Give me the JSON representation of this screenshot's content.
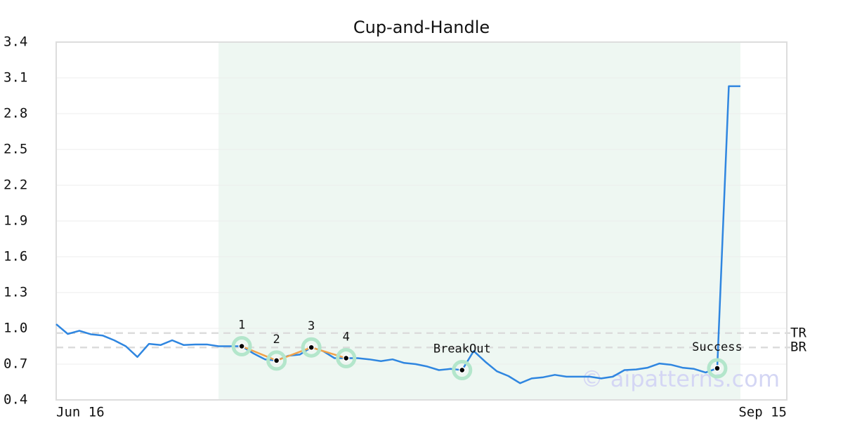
{
  "chart_data": {
    "type": "line",
    "title": "Cup-and-Handle",
    "categories": [
      "Jun 16",
      null,
      null,
      null,
      null,
      null,
      null,
      null,
      null,
      null,
      null,
      null,
      null,
      null,
      null,
      null,
      null,
      null,
      null,
      null,
      null,
      null,
      null,
      null,
      null,
      null,
      null,
      null,
      null,
      null,
      null,
      null,
      null,
      null,
      null,
      null,
      null,
      null,
      null,
      null,
      null,
      null,
      null,
      null,
      null,
      null,
      null,
      null,
      null,
      null,
      null,
      null,
      null,
      null,
      null,
      null,
      null,
      null,
      null,
      null,
      null,
      null,
      null,
      "Sep 15"
    ],
    "series": [
      {
        "color": "#2f86e0",
        "values": [
          1.035,
          0.953,
          0.98,
          0.95,
          0.94,
          0.9,
          0.85,
          0.76,
          0.87,
          0.86,
          0.9,
          0.86,
          0.865,
          0.865,
          0.85,
          0.85,
          0.85,
          0.79,
          0.74,
          0.73,
          0.77,
          0.78,
          0.84,
          0.81,
          0.75,
          0.75,
          0.75,
          0.74,
          0.725,
          0.74,
          0.71,
          0.7,
          0.68,
          0.65,
          0.66,
          0.65,
          0.81,
          0.72,
          0.64,
          0.6,
          0.54,
          0.58,
          0.59,
          0.61,
          0.595,
          0.595,
          0.595,
          0.58,
          0.595,
          0.65,
          0.655,
          0.67,
          0.705,
          0.695,
          0.67,
          0.66,
          0.63,
          0.665,
          3.03,
          3.03,
          null,
          null,
          null,
          null
        ]
      }
    ],
    "ylim": [
      0.4,
      3.4
    ],
    "yticks": [
      0.4,
      0.7,
      {
        "value": 1,
        "label": "1.0"
      },
      1.3,
      1.6,
      1.9,
      2.2,
      2.5,
      2.8,
      3.1,
      3.4
    ],
    "grid": true,
    "highlight": {
      "from": 14,
      "to": 59,
      "color": "#eef7f2"
    },
    "pattern_line": {
      "color": "#f0a24a",
      "indices": [
        16,
        19,
        22,
        25
      ]
    },
    "annotations": [
      {
        "index": 16,
        "label": "1"
      },
      {
        "index": 19,
        "label": "2"
      },
      {
        "index": 22,
        "label": "3"
      },
      {
        "index": 25,
        "label": "4"
      },
      {
        "index": 35,
        "label": "BreakOut"
      },
      {
        "index": 57,
        "label": "Success"
      }
    ],
    "levels": [
      {
        "name": "TR",
        "value": 0.96
      },
      {
        "name": "BR",
        "value": 0.84
      }
    ],
    "watermark": "© aipatterns.com"
  }
}
